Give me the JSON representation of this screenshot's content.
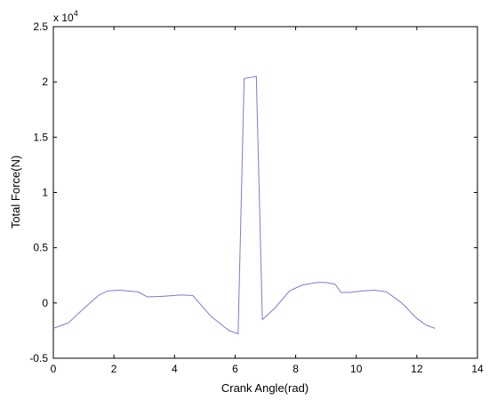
{
  "chart_data": {
    "type": "line",
    "title": "",
    "xlabel": "Crank Angle(rad)",
    "ylabel": "Total Force(N)",
    "y_multiplier_base": "x 10",
    "y_multiplier_exp": "4",
    "xlim": [
      0,
      14
    ],
    "ylim": [
      -0.5,
      2.5
    ],
    "xticks": [
      0,
      2,
      4,
      6,
      8,
      10,
      12,
      14
    ],
    "xtick_labels": [
      "0",
      "2",
      "4",
      "6",
      "8",
      "10",
      "12",
      "14"
    ],
    "yticks": [
      -0.5,
      0,
      0.5,
      1,
      1.5,
      2,
      2.5
    ],
    "ytick_labels": [
      "-0.5",
      "0",
      "0.5",
      "1",
      "1.5",
      "2",
      "2.5"
    ],
    "grid": false,
    "series_color": "#7b7bd6",
    "x": [
      0,
      0.5,
      1.0,
      1.5,
      1.8,
      2.2,
      2.8,
      3.1,
      3.6,
      4.2,
      4.6,
      5.2,
      5.8,
      6.1,
      6.3,
      6.7,
      6.9,
      7.3,
      7.8,
      8.2,
      8.7,
      9.0,
      9.3,
      9.5,
      9.8,
      10.2,
      10.6,
      11.0,
      11.5,
      12.0,
      12.3,
      12.6
    ],
    "series": [
      {
        "values": [
          -0.23,
          -0.18,
          -0.05,
          0.07,
          0.11,
          0.115,
          0.1,
          0.055,
          0.06,
          0.072,
          0.068,
          -0.12,
          -0.25,
          -0.28,
          2.03,
          2.05,
          -0.15,
          -0.05,
          0.11,
          0.16,
          0.185,
          0.185,
          0.17,
          0.095,
          0.095,
          0.11,
          0.115,
          0.1,
          0.0,
          -0.14,
          -0.2,
          -0.23
        ]
      }
    ]
  }
}
